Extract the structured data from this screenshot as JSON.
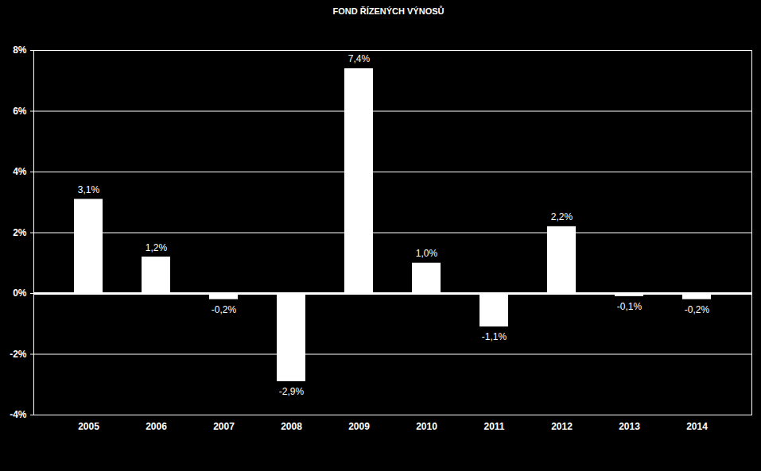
{
  "chart_data": {
    "type": "bar",
    "title": "FOND ŘÍZENÝCH VÝNOSŮ",
    "categories": [
      "2005",
      "2006",
      "2007",
      "2008",
      "2009",
      "2010",
      "2011",
      "2012",
      "2013",
      "2014"
    ],
    "values": [
      3.1,
      1.2,
      -0.2,
      -2.9,
      7.4,
      1.0,
      -1.1,
      2.2,
      -0.1,
      -0.2
    ],
    "value_labels": [
      "3,1%",
      "1,2%",
      "-0,2%",
      "-2,9%",
      "7,4%",
      "1,0%",
      "-1,1%",
      "2,2%",
      "-0,1%",
      "-0,2%"
    ],
    "color": "#ffffff",
    "ylim": [
      -4,
      8
    ],
    "yticks": [
      {
        "value": -4,
        "label": "-4%"
      },
      {
        "value": -2,
        "label": "-2%"
      },
      {
        "value": 0,
        "label": "0%"
      },
      {
        "value": 2,
        "label": "2%"
      },
      {
        "value": 4,
        "label": "4%"
      },
      {
        "value": 6,
        "label": "6%"
      },
      {
        "value": 8,
        "label": "8%"
      }
    ],
    "grid": true,
    "data_labels": true
  }
}
